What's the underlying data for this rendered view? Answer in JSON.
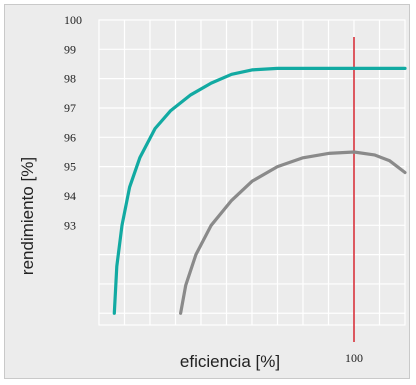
{
  "chart_data": {
    "type": "line",
    "title": "",
    "xlabel": "eficiencia [%]",
    "ylabel": "rendimiento [%]",
    "x_tick_labels": [
      {
        "label": "100",
        "value": 100
      }
    ],
    "y_tick_labels": [
      {
        "label": "100",
        "value": 100
      },
      {
        "label": "99",
        "value": 99
      },
      {
        "label": "98",
        "value": 98
      },
      {
        "label": "97",
        "value": 97
      },
      {
        "label": "96",
        "value": 96
      },
      {
        "label": "95",
        "value": 95
      },
      {
        "label": "94",
        "value": 94
      },
      {
        "label": "93",
        "value": 93
      }
    ],
    "xlim": [
      50,
      110
    ],
    "ylim": [
      89.6,
      100
    ],
    "grid": true,
    "reference_line": {
      "x": 100,
      "color": "#d8323c"
    },
    "series": [
      {
        "color": "#12aaa2",
        "x": [
          53,
          53.5,
          54.5,
          56,
          58,
          61,
          64,
          68,
          72,
          76,
          80,
          85,
          90,
          95,
          100,
          105,
          110
        ],
        "y": [
          90.0,
          91.6,
          93.0,
          94.3,
          95.3,
          96.3,
          96.9,
          97.45,
          97.85,
          98.15,
          98.3,
          98.35,
          98.35,
          98.35,
          98.35,
          98.35,
          98.35
        ]
      },
      {
        "color": "#8a8a8a",
        "x": [
          66,
          67,
          69,
          72,
          76,
          80,
          85,
          90,
          95,
          100,
          104,
          107,
          110
        ],
        "y": [
          90.0,
          90.95,
          92.0,
          93.0,
          93.85,
          94.5,
          95.0,
          95.3,
          95.45,
          95.5,
          95.4,
          95.2,
          94.8
        ]
      }
    ]
  }
}
